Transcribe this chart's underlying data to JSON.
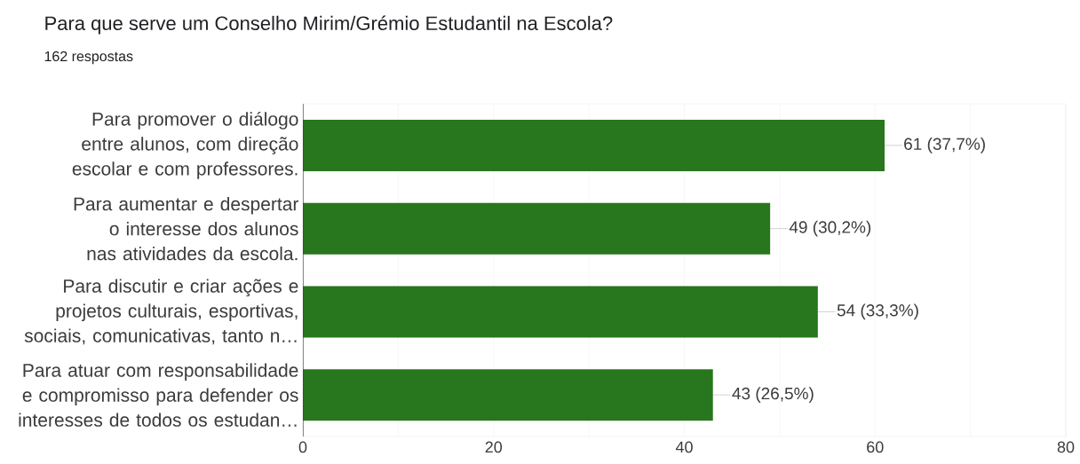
{
  "chart_data": {
    "type": "bar",
    "orientation": "horizontal",
    "title": "Para que serve um Conselho Mirim/Grémio Estudantil na Escola?",
    "subtitle": "162 respostas",
    "categories": [
      "Para promover o diálogo entre alunos, com direção escolar e com professores.",
      "Para aumentar e despertar o interesse dos alunos nas atividades da escola.",
      "Para discutir e criar ações e projetos culturais, esportivas, sociais, comunicativas, tanto n…",
      "Para atuar com responsabilidade e compromisso para defender os interesses de todos os estudan…"
    ],
    "values": [
      61,
      49,
      54,
      43
    ],
    "color": "#28761d",
    "value_labels": [
      "61 (37,7%)",
      "49 (30,2%)",
      "54 (33,3%)",
      "43 (26,5%)"
    ],
    "xlim": [
      0,
      80
    ],
    "xticks": [
      0,
      {
        "value": 10,
        "label": null
      },
      20,
      {
        "value": 30,
        "label": null
      },
      40,
      {
        "value": 50,
        "label": null
      },
      60,
      {
        "value": 70,
        "label": null
      },
      80
    ],
    "grid": "x"
  }
}
